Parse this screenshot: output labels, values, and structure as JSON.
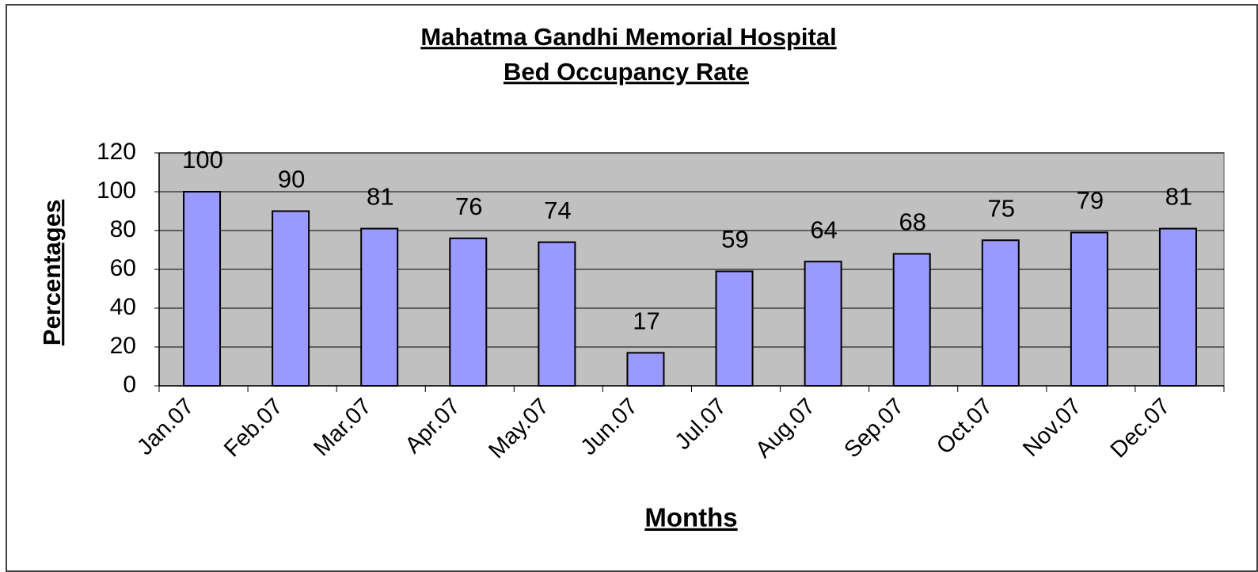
{
  "chart_data": {
    "type": "bar",
    "title": "Mahatma Gandhi Memorial Hospital",
    "subtitle": "Bed Occupancy Rate",
    "x_label": "Months",
    "y_label": "Percentages",
    "categories": [
      "Jan.07",
      "Feb.07",
      "Mar.07",
      "Apr.07",
      "May.07",
      "Jun.07",
      "Jul.07",
      "Aug.07",
      "Sep.07",
      "Oct.07",
      "Nov.07",
      "Dec.07"
    ],
    "values": [
      100,
      90,
      81,
      76,
      74,
      17,
      59,
      64,
      68,
      75,
      79,
      81
    ],
    "color": "#9999ff",
    "ylim": [
      0,
      120
    ],
    "yticks": [
      0,
      20,
      40,
      60,
      80,
      100,
      120
    ],
    "grid": true
  }
}
